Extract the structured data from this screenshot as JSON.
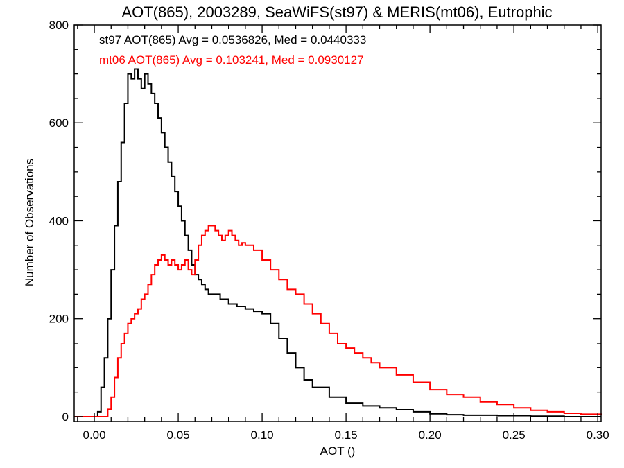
{
  "chart_data": {
    "type": "line",
    "title": "AOT(865), 2003289, SeaWiFS(st97) & MERIS(mt06), Eutrophic",
    "xlabel": "AOT ()",
    "ylabel": "Number of Observations",
    "xlim": [
      -0.012,
      0.302
    ],
    "ylim": [
      -10,
      800
    ],
    "x_ticks": [
      0.0,
      0.05,
      0.1,
      0.15,
      0.2,
      0.25,
      0.3
    ],
    "x_tick_labels": [
      "0.00",
      "0.05",
      "0.10",
      "0.15",
      "0.20",
      "0.25",
      "0.30"
    ],
    "y_ticks": [
      0,
      200,
      400,
      600,
      800
    ],
    "y_tick_labels": [
      "0",
      "200",
      "400",
      "600",
      "800"
    ],
    "grid": false,
    "annotations": [
      {
        "text": "st97 AOT(865) Avg = 0.0536826, Med = 0.0440333",
        "color": "#000000"
      },
      {
        "text": "mt06 AOT(865) Avg = 0.103241, Med = 0.0930127",
        "color": "#ff0000"
      }
    ],
    "series": [
      {
        "name": "st97",
        "color": "#000000",
        "x": [
          -0.012,
          0.0,
          0.002,
          0.004,
          0.006,
          0.008,
          0.01,
          0.012,
          0.014,
          0.016,
          0.018,
          0.02,
          0.022,
          0.024,
          0.026,
          0.028,
          0.03,
          0.032,
          0.034,
          0.036,
          0.038,
          0.04,
          0.042,
          0.044,
          0.046,
          0.048,
          0.05,
          0.052,
          0.054,
          0.056,
          0.058,
          0.06,
          0.062,
          0.064,
          0.066,
          0.068,
          0.07,
          0.075,
          0.08,
          0.085,
          0.09,
          0.095,
          0.1,
          0.105,
          0.11,
          0.115,
          0.12,
          0.125,
          0.13,
          0.14,
          0.15,
          0.16,
          0.17,
          0.18,
          0.19,
          0.2,
          0.21,
          0.22,
          0.23,
          0.24,
          0.25,
          0.26,
          0.27,
          0.28,
          0.29,
          0.302
        ],
        "values": [
          0,
          0,
          10,
          60,
          120,
          200,
          300,
          390,
          480,
          560,
          640,
          700,
          690,
          710,
          690,
          670,
          700,
          680,
          660,
          640,
          610,
          580,
          550,
          520,
          490,
          460,
          430,
          400,
          370,
          340,
          310,
          290,
          280,
          270,
          260,
          250,
          250,
          240,
          230,
          225,
          220,
          215,
          210,
          190,
          160,
          130,
          100,
          75,
          60,
          40,
          28,
          22,
          18,
          14,
          10,
          6,
          4,
          3,
          3,
          2,
          2,
          1,
          1,
          0,
          0,
          0
        ]
      },
      {
        "name": "mt06",
        "color": "#ff0000",
        "x": [
          -0.012,
          0.0,
          0.004,
          0.008,
          0.01,
          0.012,
          0.014,
          0.016,
          0.018,
          0.02,
          0.022,
          0.024,
          0.026,
          0.028,
          0.03,
          0.032,
          0.034,
          0.036,
          0.038,
          0.04,
          0.042,
          0.044,
          0.046,
          0.048,
          0.05,
          0.052,
          0.054,
          0.056,
          0.058,
          0.06,
          0.062,
          0.064,
          0.066,
          0.068,
          0.07,
          0.072,
          0.074,
          0.076,
          0.078,
          0.08,
          0.082,
          0.084,
          0.086,
          0.088,
          0.09,
          0.095,
          0.1,
          0.105,
          0.11,
          0.115,
          0.12,
          0.125,
          0.13,
          0.135,
          0.14,
          0.145,
          0.15,
          0.155,
          0.16,
          0.165,
          0.17,
          0.18,
          0.19,
          0.2,
          0.21,
          0.22,
          0.23,
          0.24,
          0.25,
          0.26,
          0.27,
          0.28,
          0.29,
          0.302
        ],
        "values": [
          0,
          0,
          0,
          15,
          40,
          80,
          120,
          150,
          170,
          190,
          200,
          210,
          220,
          240,
          250,
          270,
          290,
          310,
          320,
          330,
          320,
          310,
          320,
          310,
          300,
          310,
          320,
          300,
          290,
          320,
          350,
          370,
          380,
          390,
          390,
          380,
          370,
          360,
          370,
          380,
          370,
          360,
          350,
          355,
          350,
          340,
          320,
          300,
          280,
          260,
          250,
          230,
          210,
          190,
          170,
          150,
          140,
          130,
          120,
          110,
          100,
          85,
          70,
          55,
          45,
          40,
          30,
          25,
          18,
          13,
          10,
          7,
          5,
          3
        ]
      }
    ]
  }
}
